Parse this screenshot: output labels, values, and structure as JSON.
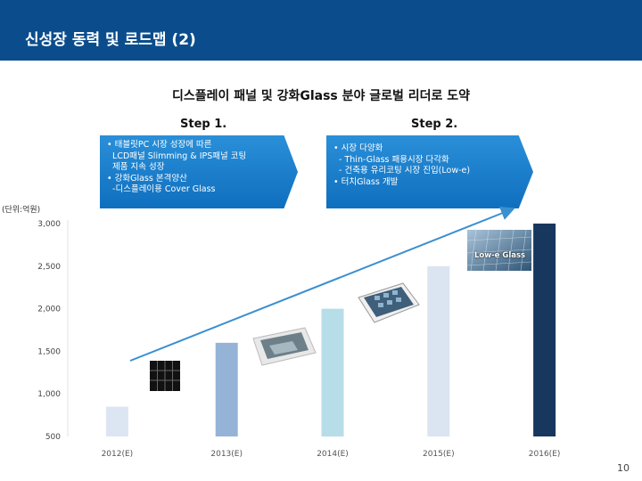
{
  "header": {
    "title": "신성장 동력 및 로드맵 (2)"
  },
  "subtitle": "디스플레이 패널 및 강화Glass 분야 글로벌 리더로 도약",
  "steps": [
    {
      "label": "Step 1.",
      "lines": [
        "• 태블릿PC 시장 성장에 따른",
        "  LCD패널 Slimming & IPS패널 코팅",
        "  제품 지속 성장",
        "• 강화Glass 본격양산",
        "  -디스플레이용 Cover Glass"
      ]
    },
    {
      "label": "Step 2.",
      "lines": [
        "• 시장 다양화",
        "  - Thin-Glass 패용시장 다각화",
        "  - 건축용 유리코팅 시장 진입(Low-e)",
        "• 터치Glass 개발"
      ]
    }
  ],
  "unit_label": "(단위:억원)",
  "image_labels": {
    "lowe": "Low-e Glass"
  },
  "page_number": "10",
  "colors": {
    "header": "#0b4d8c",
    "arrow": "#0f6fbf",
    "trend_arrow": "#3a8fd0"
  },
  "chart_data": {
    "type": "bar",
    "categories": [
      "2012(E)",
      "2013(E)",
      "2014(E)",
      "2015(E)",
      "2016(E)"
    ],
    "values": [
      850,
      1600,
      2000,
      2500,
      3000
    ],
    "bar_colors": [
      "#dce6f2",
      "#95b3d7",
      "#b7dde8",
      "#dbe5f1",
      "#17375e"
    ],
    "yticks": [
      "3,000",
      "2,500",
      "2,000",
      "1,500",
      "1,000",
      "500"
    ],
    "ylim": [
      500,
      3000
    ],
    "title": "",
    "xlabel": "",
    "ylabel": ""
  }
}
